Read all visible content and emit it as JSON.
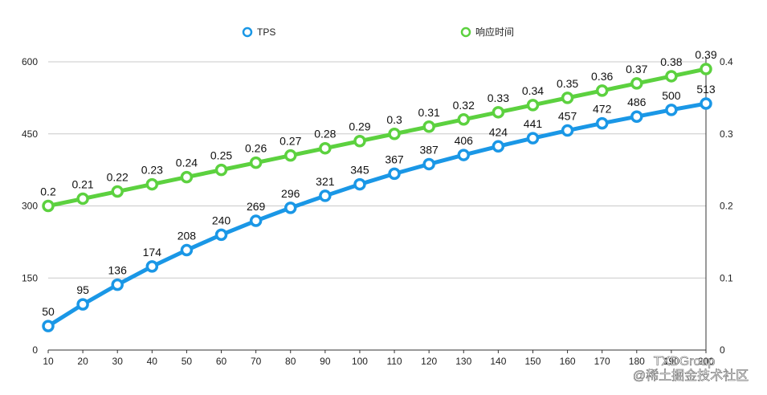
{
  "chart_data": {
    "type": "line",
    "x": [
      10,
      20,
      30,
      40,
      50,
      60,
      70,
      80,
      90,
      100,
      110,
      120,
      130,
      140,
      150,
      160,
      170,
      180,
      190,
      200
    ],
    "x_tick_labels": [
      "10",
      "20",
      "30",
      "40",
      "50",
      "60",
      "70",
      "80",
      "90",
      "100",
      "110",
      "120",
      "130",
      "140",
      "150",
      "160",
      "170",
      "180",
      "190",
      "200"
    ],
    "y_left": {
      "range": [
        0,
        600
      ],
      "ticks": [
        "0",
        "150",
        "300",
        "450",
        "600"
      ]
    },
    "y_right": {
      "range": [
        0,
        0.4
      ],
      "ticks": [
        "0",
        "0.1",
        "0.2",
        "0.3",
        "0.4"
      ]
    },
    "grid": true,
    "legend_position": "top-center",
    "series": [
      {
        "name": "TPS",
        "axis": "left",
        "color": "#1a97e6",
        "values": [
          50,
          95,
          136,
          174,
          208,
          240,
          269,
          296,
          321,
          345,
          367,
          387,
          406,
          424,
          441,
          457,
          472,
          486,
          500,
          513
        ],
        "labels": [
          "50",
          "95",
          "136",
          "174",
          "208",
          "240",
          "269",
          "296",
          "321",
          "345",
          "367",
          "387",
          "406",
          "424",
          "441",
          "457",
          "472",
          "486",
          "500",
          "513"
        ]
      },
      {
        "name": "响应时间",
        "axis": "right",
        "color": "#5cd13f",
        "values": [
          0.2,
          0.21,
          0.22,
          0.23,
          0.24,
          0.25,
          0.26,
          0.27,
          0.28,
          0.29,
          0.3,
          0.31,
          0.32,
          0.33,
          0.34,
          0.35,
          0.36,
          0.37,
          0.38,
          0.39
        ],
        "labels": [
          "0.2",
          "0.21",
          "0.22",
          "0.23",
          "0.24",
          "0.25",
          "0.26",
          "0.27",
          "0.28",
          "0.29",
          "0.3",
          "0.31",
          "0.32",
          "0.33",
          "0.34",
          "0.35",
          "0.36",
          "0.37",
          "0.38",
          "0.39"
        ]
      }
    ]
  },
  "watermark": {
    "line1": "TXDGroup",
    "line2": "@稀土掘金技术社区"
  }
}
